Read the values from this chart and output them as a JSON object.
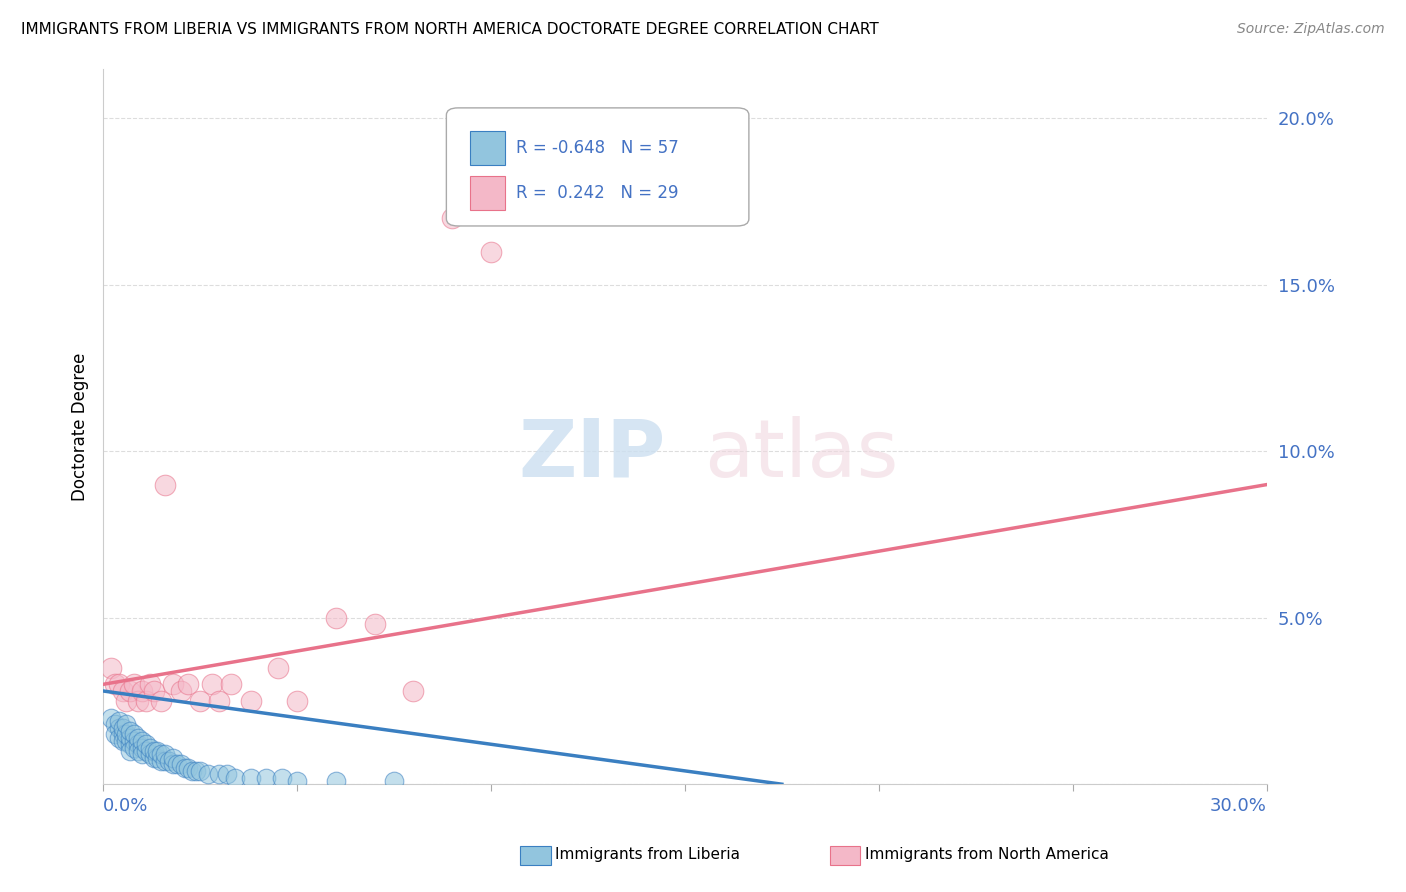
{
  "title": "IMMIGRANTS FROM LIBERIA VS IMMIGRANTS FROM NORTH AMERICA DOCTORATE DEGREE CORRELATION CHART",
  "source": "Source: ZipAtlas.com",
  "ylabel": "Doctorate Degree",
  "y_ticks": [
    0.0,
    0.05,
    0.1,
    0.15,
    0.2
  ],
  "y_tick_labels": [
    "",
    "5.0%",
    "10.0%",
    "15.0%",
    "20.0%"
  ],
  "x_ticks": [
    0.0,
    0.05,
    0.1,
    0.15,
    0.2,
    0.25,
    0.3
  ],
  "xlim": [
    0.0,
    0.3
  ],
  "ylim": [
    0.0,
    0.215
  ],
  "color_blue": "#92C5DE",
  "color_pink": "#F4B8C8",
  "line_color_blue": "#3A7FC1",
  "line_color_pink": "#E8728A",
  "blue_scatter_x": [
    0.002,
    0.003,
    0.003,
    0.004,
    0.004,
    0.004,
    0.005,
    0.005,
    0.005,
    0.006,
    0.006,
    0.006,
    0.007,
    0.007,
    0.007,
    0.007,
    0.008,
    0.008,
    0.008,
    0.009,
    0.009,
    0.009,
    0.01,
    0.01,
    0.01,
    0.011,
    0.011,
    0.012,
    0.012,
    0.013,
    0.013,
    0.014,
    0.014,
    0.015,
    0.015,
    0.016,
    0.016,
    0.017,
    0.018,
    0.018,
    0.019,
    0.02,
    0.021,
    0.022,
    0.023,
    0.024,
    0.025,
    0.027,
    0.03,
    0.032,
    0.034,
    0.038,
    0.042,
    0.046,
    0.05,
    0.06,
    0.075
  ],
  "blue_scatter_y": [
    0.02,
    0.018,
    0.015,
    0.017,
    0.014,
    0.019,
    0.015,
    0.013,
    0.017,
    0.013,
    0.015,
    0.018,
    0.012,
    0.014,
    0.016,
    0.01,
    0.013,
    0.015,
    0.011,
    0.012,
    0.014,
    0.01,
    0.011,
    0.013,
    0.009,
    0.01,
    0.012,
    0.009,
    0.011,
    0.008,
    0.01,
    0.008,
    0.01,
    0.007,
    0.009,
    0.007,
    0.009,
    0.007,
    0.006,
    0.008,
    0.006,
    0.006,
    0.005,
    0.005,
    0.004,
    0.004,
    0.004,
    0.003,
    0.003,
    0.003,
    0.002,
    0.002,
    0.002,
    0.002,
    0.001,
    0.001,
    0.001
  ],
  "pink_scatter_x": [
    0.002,
    0.003,
    0.004,
    0.005,
    0.006,
    0.007,
    0.008,
    0.009,
    0.01,
    0.011,
    0.012,
    0.013,
    0.015,
    0.016,
    0.018,
    0.02,
    0.022,
    0.025,
    0.028,
    0.03,
    0.033,
    0.038,
    0.045,
    0.05,
    0.06,
    0.07,
    0.08,
    0.09,
    0.1
  ],
  "pink_scatter_y": [
    0.035,
    0.03,
    0.03,
    0.028,
    0.025,
    0.028,
    0.03,
    0.025,
    0.028,
    0.025,
    0.03,
    0.028,
    0.025,
    0.09,
    0.03,
    0.028,
    0.03,
    0.025,
    0.03,
    0.025,
    0.03,
    0.025,
    0.035,
    0.025,
    0.05,
    0.048,
    0.028,
    0.17,
    0.16
  ],
  "blue_line_x": [
    0.0,
    0.175
  ],
  "blue_line_y": [
    0.028,
    0.0
  ],
  "pink_line_x": [
    0.0,
    0.3
  ],
  "pink_line_y": [
    0.03,
    0.09
  ]
}
